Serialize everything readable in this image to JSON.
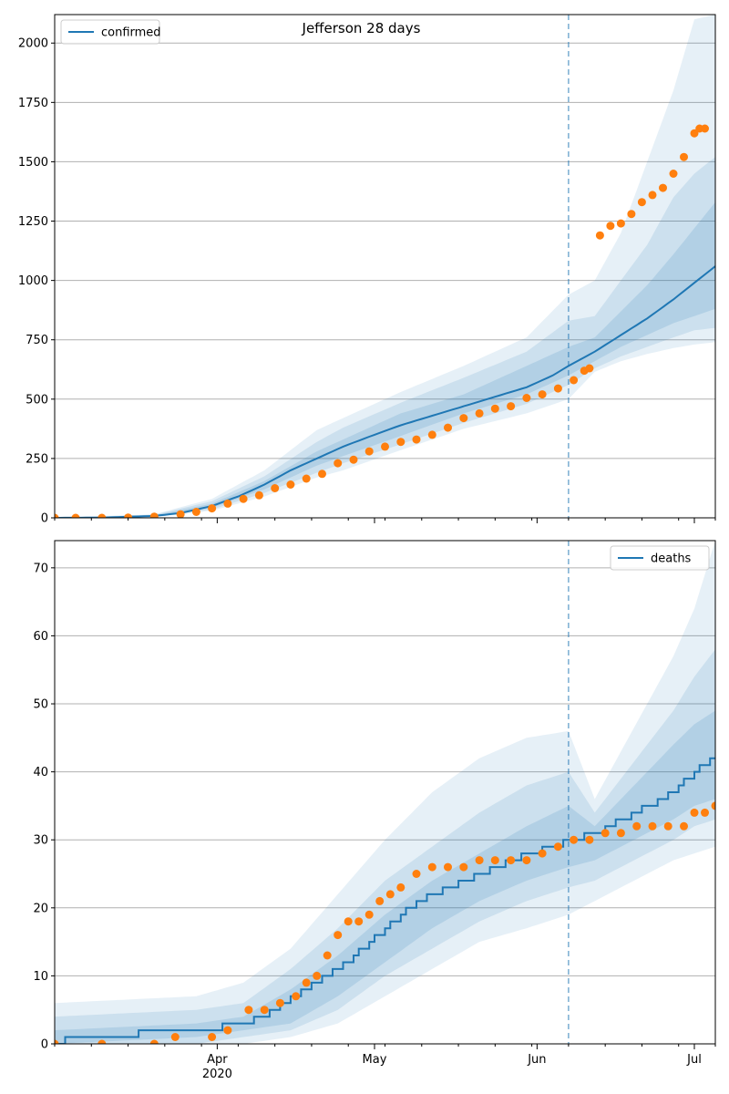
{
  "chart_data": [
    {
      "type": "line",
      "title": "Jefferson 28 days",
      "xlabel": "",
      "ylabel": "",
      "ylim": [
        0,
        2120
      ],
      "yticks": [
        0,
        250,
        500,
        750,
        1000,
        1250,
        1500,
        1750,
        2000
      ],
      "grid": "horizontal",
      "legend": {
        "placement": "top-left",
        "entries": [
          "confirmed"
        ]
      },
      "forecast_start": "2020-06-07",
      "colors": {
        "line": "#1f77b4",
        "points": "#ff7f0e",
        "band": "#1f77b4",
        "vline": "#1f77b4"
      },
      "model_line": {
        "name": "confirmed",
        "x": [
          "2020-03-01",
          "2020-03-10",
          "2020-03-20",
          "2020-03-25",
          "2020-03-31",
          "2020-04-05",
          "2020-04-10",
          "2020-04-15",
          "2020-04-20",
          "2020-04-25",
          "2020-05-01",
          "2020-05-06",
          "2020-05-12",
          "2020-05-18",
          "2020-05-24",
          "2020-05-30",
          "2020-06-04",
          "2020-06-07",
          "2020-06-12",
          "2020-06-17",
          "2020-06-22",
          "2020-06-27",
          "2020-07-01",
          "2020-07-05"
        ],
        "y": [
          0,
          1,
          8,
          20,
          50,
          90,
          140,
          200,
          250,
          300,
          350,
          390,
          430,
          470,
          510,
          550,
          600,
          640,
          700,
          770,
          840,
          920,
          990,
          1060
        ]
      },
      "bands": [
        {
          "x": [
            "2020-03-01",
            "2020-03-20",
            "2020-03-31",
            "2020-04-10",
            "2020-04-20",
            "2020-04-25",
            "2020-05-06",
            "2020-05-18",
            "2020-05-30",
            "2020-06-07",
            "2020-06-12",
            "2020-06-17",
            "2020-06-22",
            "2020-06-27",
            "2020-07-01",
            "2020-07-05"
          ],
          "low": [
            0,
            3,
            30,
            90,
            170,
            200,
            285,
            375,
            440,
            500,
            615,
            660,
            690,
            715,
            730,
            740
          ],
          "high": [
            0,
            15,
            80,
            200,
            370,
            420,
            530,
            640,
            760,
            940,
            1000,
            1200,
            1500,
            1800,
            2100,
            2120
          ]
        },
        {
          "x": [
            "2020-03-01",
            "2020-03-20",
            "2020-03-31",
            "2020-04-10",
            "2020-04-20",
            "2020-04-25",
            "2020-05-06",
            "2020-05-18",
            "2020-05-30",
            "2020-06-07",
            "2020-06-12",
            "2020-06-17",
            "2020-06-22",
            "2020-06-27",
            "2020-07-01",
            "2020-07-05"
          ],
          "low": [
            0,
            4,
            35,
            105,
            190,
            230,
            310,
            400,
            480,
            560,
            630,
            680,
            720,
            760,
            790,
            800
          ],
          "high": [
            0,
            13,
            70,
            175,
            320,
            380,
            485,
            590,
            700,
            830,
            850,
            1000,
            1150,
            1350,
            1450,
            1520
          ]
        },
        {
          "x": [
            "2020-03-01",
            "2020-03-20",
            "2020-03-31",
            "2020-04-10",
            "2020-04-20",
            "2020-04-25",
            "2020-05-06",
            "2020-05-18",
            "2020-05-30",
            "2020-06-07",
            "2020-06-12",
            "2020-06-17",
            "2020-06-22",
            "2020-06-27",
            "2020-07-01",
            "2020-07-05"
          ],
          "low": [
            0,
            6,
            42,
            120,
            220,
            260,
            345,
            440,
            520,
            600,
            660,
            720,
            770,
            820,
            850,
            880
          ],
          "high": [
            0,
            10,
            60,
            155,
            280,
            330,
            440,
            520,
            640,
            720,
            760,
            870,
            980,
            1110,
            1220,
            1330
          ]
        }
      ],
      "observed": {
        "x": [
          "2020-03-01",
          "2020-03-05",
          "2020-03-10",
          "2020-03-15",
          "2020-03-20",
          "2020-03-25",
          "2020-03-28",
          "2020-03-31",
          "2020-04-03",
          "2020-04-06",
          "2020-04-09",
          "2020-04-12",
          "2020-04-15",
          "2020-04-18",
          "2020-04-21",
          "2020-04-24",
          "2020-04-27",
          "2020-04-30",
          "2020-05-03",
          "2020-05-06",
          "2020-05-09",
          "2020-05-12",
          "2020-05-15",
          "2020-05-18",
          "2020-05-21",
          "2020-05-24",
          "2020-05-27",
          "2020-05-30",
          "2020-06-02",
          "2020-06-05",
          "2020-06-08",
          "2020-06-10",
          "2020-06-11",
          "2020-06-13",
          "2020-06-15",
          "2020-06-17",
          "2020-06-19",
          "2020-06-21",
          "2020-06-23",
          "2020-06-25",
          "2020-06-27",
          "2020-06-29",
          "2020-07-01",
          "2020-07-02",
          "2020-07-03"
        ],
        "y": [
          0,
          0,
          0,
          1,
          5,
          15,
          25,
          40,
          60,
          80,
          95,
          125,
          140,
          165,
          185,
          230,
          245,
          280,
          300,
          320,
          330,
          350,
          380,
          420,
          440,
          460,
          470,
          505,
          520,
          545,
          580,
          620,
          630,
          1190,
          1230,
          1240,
          1280,
          1330,
          1360,
          1390,
          1450,
          1520,
          1620,
          1640,
          1640
        ]
      },
      "x_ticks": [
        {
          "date": "2020-04-01",
          "label": "Apr",
          "sublabel": ""
        },
        {
          "date": "2020-05-01",
          "label": "May",
          "sublabel": ""
        },
        {
          "date": "2020-06-01",
          "label": "Jun",
          "sublabel": ""
        },
        {
          "date": "2020-07-01",
          "label": "Jul",
          "sublabel": ""
        }
      ]
    },
    {
      "type": "line",
      "title": "",
      "xlabel": "",
      "ylabel": "",
      "ylim": [
        0,
        74
      ],
      "yticks": [
        0,
        10,
        20,
        30,
        40,
        50,
        60,
        70
      ],
      "grid": "horizontal",
      "legend": {
        "placement": "top-right",
        "entries": [
          "deaths"
        ]
      },
      "forecast_start": "2020-06-07",
      "colors": {
        "line": "#1f77b4",
        "points": "#ff7f0e",
        "band": "#1f77b4",
        "vline": "#1f77b4"
      },
      "model_line": {
        "name": "deaths",
        "x": [
          "2020-03-01",
          "2020-03-05",
          "2020-03-28",
          "2020-04-06",
          "2020-04-12",
          "2020-04-18",
          "2020-04-24",
          "2020-04-30",
          "2020-05-06",
          "2020-05-12",
          "2020-05-18",
          "2020-05-24",
          "2020-05-30",
          "2020-06-04",
          "2020-06-07",
          "2020-06-12",
          "2020-06-17",
          "2020-06-22",
          "2020-06-27",
          "2020-07-01",
          "2020-07-05"
        ],
        "y": [
          0,
          1,
          2,
          3,
          5,
          8,
          11,
          15,
          19,
          22,
          24,
          26,
          28,
          29,
          30,
          31,
          33,
          35,
          37,
          40,
          42
        ]
      },
      "bands": [
        {
          "x": [
            "2020-03-01",
            "2020-03-28",
            "2020-04-06",
            "2020-04-15",
            "2020-04-24",
            "2020-05-03",
            "2020-05-12",
            "2020-05-21",
            "2020-05-30",
            "2020-06-07",
            "2020-06-12",
            "2020-06-17",
            "2020-06-22",
            "2020-06-27",
            "2020-07-01",
            "2020-07-05"
          ],
          "low": [
            0,
            0,
            0,
            1,
            3,
            7,
            11,
            15,
            17,
            19,
            21,
            23,
            25,
            27,
            28,
            29
          ],
          "high": [
            6,
            7,
            9,
            14,
            22,
            30,
            37,
            42,
            45,
            46,
            36,
            43,
            50,
            57,
            64,
            74
          ]
        },
        {
          "x": [
            "2020-03-01",
            "2020-03-28",
            "2020-04-06",
            "2020-04-15",
            "2020-04-24",
            "2020-05-03",
            "2020-05-12",
            "2020-05-21",
            "2020-05-30",
            "2020-06-07",
            "2020-06-12",
            "2020-06-17",
            "2020-06-22",
            "2020-06-27",
            "2020-07-01",
            "2020-07-05"
          ],
          "low": [
            0,
            0,
            1,
            2,
            5,
            10,
            14,
            18,
            21,
            23,
            24,
            26,
            28,
            30,
            32,
            33
          ],
          "high": [
            4,
            5,
            6,
            11,
            17,
            24,
            29,
            34,
            38,
            40,
            34,
            39,
            44,
            49,
            54,
            58
          ]
        },
        {
          "x": [
            "2020-03-01",
            "2020-03-28",
            "2020-04-06",
            "2020-04-15",
            "2020-04-24",
            "2020-05-03",
            "2020-05-12",
            "2020-05-21",
            "2020-05-30",
            "2020-06-07",
            "2020-06-12",
            "2020-06-17",
            "2020-06-22",
            "2020-06-27",
            "2020-07-01",
            "2020-07-05"
          ],
          "low": [
            0,
            1,
            2,
            3,
            7,
            12,
            17,
            21,
            24,
            26,
            27,
            29,
            31,
            33,
            35,
            36
          ],
          "high": [
            2,
            3,
            4,
            8,
            13,
            19,
            24,
            28,
            32,
            35,
            32,
            36,
            40,
            44,
            47,
            49
          ]
        }
      ],
      "observed": {
        "x": [
          "2020-03-01",
          "2020-03-10",
          "2020-03-20",
          "2020-03-24",
          "2020-03-31",
          "2020-04-03",
          "2020-04-07",
          "2020-04-10",
          "2020-04-13",
          "2020-04-16",
          "2020-04-18",
          "2020-04-20",
          "2020-04-22",
          "2020-04-24",
          "2020-04-26",
          "2020-04-28",
          "2020-04-30",
          "2020-05-02",
          "2020-05-04",
          "2020-05-06",
          "2020-05-09",
          "2020-05-12",
          "2020-05-15",
          "2020-05-18",
          "2020-05-21",
          "2020-05-24",
          "2020-05-27",
          "2020-05-30",
          "2020-06-02",
          "2020-06-05",
          "2020-06-08",
          "2020-06-11",
          "2020-06-14",
          "2020-06-17",
          "2020-06-20",
          "2020-06-23",
          "2020-06-26",
          "2020-06-29",
          "2020-07-01",
          "2020-07-03",
          "2020-07-05"
        ],
        "y": [
          0,
          0,
          0,
          1,
          1,
          2,
          5,
          5,
          6,
          7,
          9,
          10,
          13,
          16,
          18,
          18,
          19,
          21,
          22,
          23,
          25,
          26,
          26,
          26,
          27,
          27,
          27,
          27,
          28,
          29,
          30,
          30,
          31,
          31,
          32,
          32,
          32,
          32,
          34,
          34,
          35
        ]
      },
      "x_ticks": [
        {
          "date": "2020-04-01",
          "label": "Apr",
          "sublabel": "2020"
        },
        {
          "date": "2020-05-01",
          "label": "May",
          "sublabel": ""
        },
        {
          "date": "2020-06-01",
          "label": "Jun",
          "sublabel": ""
        },
        {
          "date": "2020-07-01",
          "label": "Jul",
          "sublabel": ""
        }
      ]
    }
  ]
}
